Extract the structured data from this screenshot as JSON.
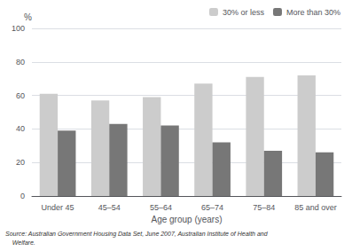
{
  "chart_data": {
    "type": "bar",
    "categories": [
      "Under 45",
      "45–54",
      "55–64",
      "65–74",
      "75–84",
      "85 and over"
    ],
    "series": [
      {
        "name": "30% or less",
        "color": "#cccccc",
        "values": [
          61,
          57,
          59,
          67,
          71,
          72
        ]
      },
      {
        "name": "More than 30%",
        "color": "#777777",
        "values": [
          39,
          43,
          42,
          32,
          27,
          26
        ]
      }
    ],
    "xlabel": "Age group (years)",
    "ylabel": "%",
    "ylim": [
      0,
      100
    ],
    "yticks": [
      0,
      20,
      40,
      60,
      80,
      100
    ],
    "grid": true,
    "legend": "upper right",
    "annotations": [
      "Source: Australian Government Housing Data Set, June 2007, Australian Institute of Health and",
      "    Welfare."
    ]
  }
}
